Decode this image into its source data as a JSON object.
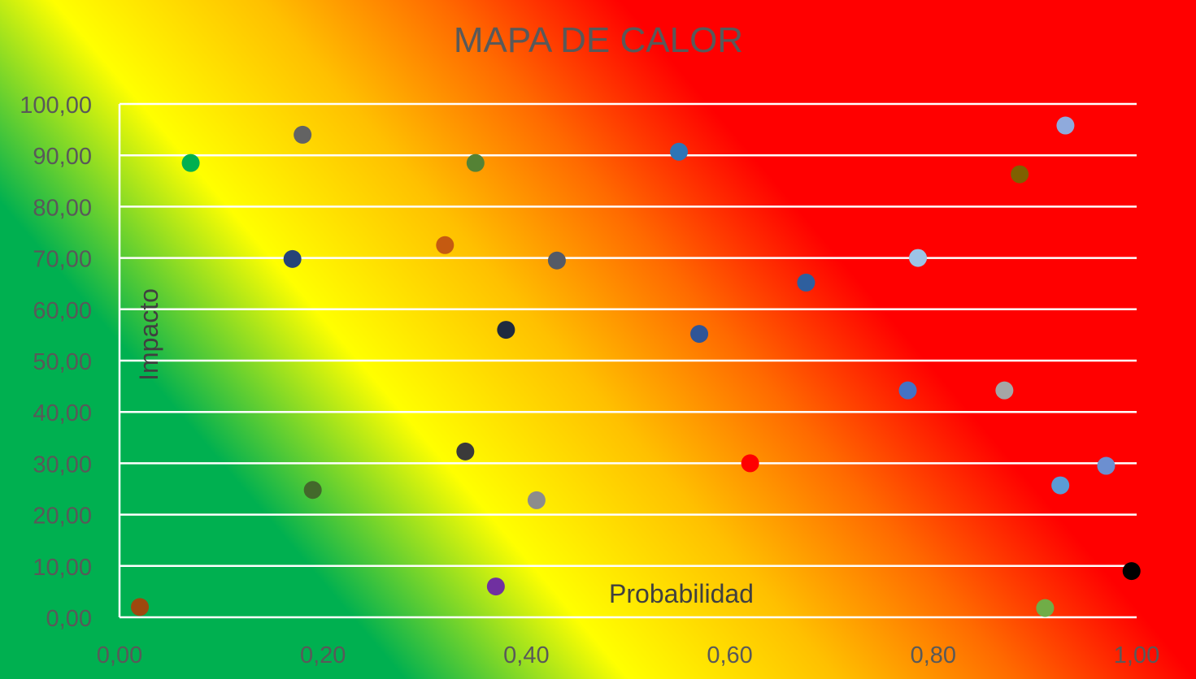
{
  "chart_data": {
    "type": "scatter",
    "title": "MAPA DE CALOR",
    "xlabel": "Probabilidad",
    "ylabel": "Impacto",
    "xlim": [
      0,
      1
    ],
    "ylim": [
      0,
      100
    ],
    "x_ticks": [
      "0,00",
      "0,20",
      "0,40",
      "0,60",
      "0,80",
      "1,00"
    ],
    "y_ticks": [
      "0,00",
      "10,00",
      "20,00",
      "30,00",
      "40,00",
      "50,00",
      "60,00",
      "70,00",
      "80,00",
      "90,00",
      "100,00"
    ],
    "grid": "horizontal",
    "background": "heat gradient: green (bottom-left) to yellow, orange, red (top-right)",
    "points": [
      {
        "x": 0.02,
        "y": 2.0,
        "color": "#9e480e"
      },
      {
        "x": 0.07,
        "y": 88.5,
        "color": "#00b050"
      },
      {
        "x": 0.17,
        "y": 69.8,
        "color": "#264478"
      },
      {
        "x": 0.18,
        "y": 94.0,
        "color": "#636363"
      },
      {
        "x": 0.19,
        "y": 24.8,
        "color": "#43682b"
      },
      {
        "x": 0.32,
        "y": 72.5,
        "color": "#c55a11"
      },
      {
        "x": 0.34,
        "y": 32.3,
        "color": "#3a3a3a"
      },
      {
        "x": 0.35,
        "y": 88.5,
        "color": "#548235"
      },
      {
        "x": 0.37,
        "y": 6.0,
        "color": "#7030a0"
      },
      {
        "x": 0.38,
        "y": 56.0,
        "color": "#1f2a3f"
      },
      {
        "x": 0.41,
        "y": 22.8,
        "color": "#8c8c8c"
      },
      {
        "x": 0.43,
        "y": 69.5,
        "color": "#545a66"
      },
      {
        "x": 0.55,
        "y": 90.7,
        "color": "#2e75b6"
      },
      {
        "x": 0.57,
        "y": 55.2,
        "color": "#2f5597"
      },
      {
        "x": 0.62,
        "y": 30.0,
        "color": "#ff0000"
      },
      {
        "x": 0.675,
        "y": 65.2,
        "color": "#2e5f9e"
      },
      {
        "x": 0.775,
        "y": 44.2,
        "color": "#4472c4"
      },
      {
        "x": 0.785,
        "y": 70.0,
        "color": "#9dc3e6"
      },
      {
        "x": 0.87,
        "y": 44.2,
        "color": "#a5a5a5"
      },
      {
        "x": 0.885,
        "y": 86.3,
        "color": "#7f6000"
      },
      {
        "x": 0.91,
        "y": 1.8,
        "color": "#70ad47"
      },
      {
        "x": 0.925,
        "y": 25.7,
        "color": "#5b9bd5"
      },
      {
        "x": 0.93,
        "y": 95.8,
        "color": "#8faadc"
      },
      {
        "x": 0.97,
        "y": 29.5,
        "color": "#6c8fd0"
      },
      {
        "x": 0.995,
        "y": 9.0,
        "color": "#000000"
      }
    ]
  }
}
